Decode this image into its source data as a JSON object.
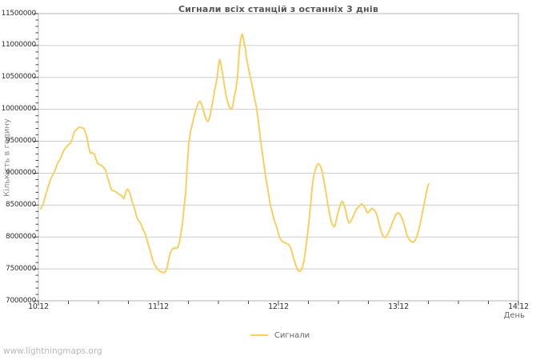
{
  "page": {
    "watermark": "www.lightningmaps.org"
  },
  "chart": {
    "title": "Сигнали всіх станцій з останніх 3 днів",
    "x_axis_label": "День",
    "y_axis_label": "Кількість в годину",
    "legend": [
      {
        "label": "Сигнали",
        "color": "#f9d05f"
      }
    ],
    "colors": {
      "line": "#f9d05f",
      "grid": "#cccccc",
      "border": "#b4b4b4",
      "tick": "#444444"
    }
  },
  "chart_data": {
    "type": "line",
    "title": "Сигнали всіх станцій з останніх 3 днів",
    "xlabel": "День",
    "ylabel": "Кількість в годину",
    "legend_position": "bottom-center",
    "grid": "horizontal",
    "x_tick_labels": [
      "10.12",
      "11.12",
      "12.12",
      "13.12",
      "14.12"
    ],
    "x_tick_positions_days": [
      0,
      1,
      2,
      3,
      4
    ],
    "x_minor_tick_interval_days": 0.25,
    "y_tick_values": [
      7000000,
      7500000,
      8000000,
      8500000,
      9000000,
      9500000,
      10000000,
      10500000,
      11000000,
      11500000
    ],
    "y_minor_tick_interval": 100000,
    "xlim_days": [
      0,
      4
    ],
    "ylim": [
      7000000,
      11500000
    ],
    "series": [
      {
        "name": "Сигнали",
        "color": "#f9d05f",
        "x_unit": "days_after_10.12",
        "points": [
          [
            0.02,
            8440000
          ],
          [
            0.04,
            8520000
          ],
          [
            0.06,
            8650000
          ],
          [
            0.08,
            8780000
          ],
          [
            0.1,
            8900000
          ],
          [
            0.12,
            8970000
          ],
          [
            0.14,
            9050000
          ],
          [
            0.16,
            9160000
          ],
          [
            0.18,
            9210000
          ],
          [
            0.2,
            9310000
          ],
          [
            0.22,
            9380000
          ],
          [
            0.247,
            9440000
          ],
          [
            0.267,
            9470000
          ],
          [
            0.28,
            9530000
          ],
          [
            0.3,
            9650000
          ],
          [
            0.32,
            9690000
          ],
          [
            0.34,
            9720000
          ],
          [
            0.367,
            9710000
          ],
          [
            0.38,
            9700000
          ],
          [
            0.393,
            9630000
          ],
          [
            0.407,
            9550000
          ],
          [
            0.413,
            9470000
          ],
          [
            0.42,
            9400000
          ],
          [
            0.433,
            9310000
          ],
          [
            0.447,
            9320000
          ],
          [
            0.467,
            9300000
          ],
          [
            0.48,
            9220000
          ],
          [
            0.493,
            9150000
          ],
          [
            0.507,
            9140000
          ],
          [
            0.527,
            9120000
          ],
          [
            0.547,
            9080000
          ],
          [
            0.56,
            9050000
          ],
          [
            0.573,
            8950000
          ],
          [
            0.587,
            8870000
          ],
          [
            0.6,
            8790000
          ],
          [
            0.613,
            8730000
          ],
          [
            0.633,
            8720000
          ],
          [
            0.653,
            8700000
          ],
          [
            0.673,
            8670000
          ],
          [
            0.693,
            8650000
          ],
          [
            0.713,
            8600000
          ],
          [
            0.727,
            8700000
          ],
          [
            0.74,
            8750000
          ],
          [
            0.753,
            8730000
          ],
          [
            0.767,
            8660000
          ],
          [
            0.78,
            8560000
          ],
          [
            0.793,
            8500000
          ],
          [
            0.807,
            8400000
          ],
          [
            0.82,
            8310000
          ],
          [
            0.833,
            8260000
          ],
          [
            0.847,
            8230000
          ],
          [
            0.86,
            8180000
          ],
          [
            0.873,
            8110000
          ],
          [
            0.887,
            8060000
          ],
          [
            0.9,
            7990000
          ],
          [
            0.913,
            7900000
          ],
          [
            0.927,
            7820000
          ],
          [
            0.94,
            7720000
          ],
          [
            0.953,
            7640000
          ],
          [
            0.967,
            7570000
          ],
          [
            0.98,
            7530000
          ],
          [
            0.993,
            7500000
          ],
          [
            1.007,
            7470000
          ],
          [
            1.027,
            7450000
          ],
          [
            1.047,
            7440000
          ],
          [
            1.06,
            7460000
          ],
          [
            1.073,
            7520000
          ],
          [
            1.087,
            7650000
          ],
          [
            1.1,
            7760000
          ],
          [
            1.113,
            7800000
          ],
          [
            1.127,
            7830000
          ],
          [
            1.14,
            7820000
          ],
          [
            1.153,
            7830000
          ],
          [
            1.16,
            7830000
          ],
          [
            1.173,
            7900000
          ],
          [
            1.187,
            8050000
          ],
          [
            1.2,
            8200000
          ],
          [
            1.213,
            8450000
          ],
          [
            1.227,
            8700000
          ],
          [
            1.24,
            9100000
          ],
          [
            1.253,
            9460000
          ],
          [
            1.267,
            9640000
          ],
          [
            1.28,
            9750000
          ],
          [
            1.293,
            9850000
          ],
          [
            1.307,
            9950000
          ],
          [
            1.32,
            10040000
          ],
          [
            1.333,
            10100000
          ],
          [
            1.347,
            10130000
          ],
          [
            1.36,
            10080000
          ],
          [
            1.373,
            10000000
          ],
          [
            1.387,
            9900000
          ],
          [
            1.4,
            9830000
          ],
          [
            1.413,
            9810000
          ],
          [
            1.427,
            9870000
          ],
          [
            1.44,
            10000000
          ],
          [
            1.453,
            10120000
          ],
          [
            1.467,
            10290000
          ],
          [
            1.48,
            10400000
          ],
          [
            1.493,
            10550000
          ],
          [
            1.5,
            10670000
          ],
          [
            1.507,
            10750000
          ],
          [
            1.513,
            10780000
          ],
          [
            1.527,
            10650000
          ],
          [
            1.54,
            10500000
          ],
          [
            1.553,
            10350000
          ],
          [
            1.567,
            10190000
          ],
          [
            1.58,
            10100000
          ],
          [
            1.593,
            10030000
          ],
          [
            1.607,
            10000000
          ],
          [
            1.62,
            10050000
          ],
          [
            1.633,
            10200000
          ],
          [
            1.647,
            10330000
          ],
          [
            1.66,
            10520000
          ],
          [
            1.667,
            10730000
          ],
          [
            1.673,
            10900000
          ],
          [
            1.68,
            11020000
          ],
          [
            1.687,
            11100000
          ],
          [
            1.693,
            11160000
          ],
          [
            1.7,
            11180000
          ],
          [
            1.707,
            11120000
          ],
          [
            1.713,
            11050000
          ],
          [
            1.727,
            10930000
          ],
          [
            1.733,
            10810000
          ],
          [
            1.747,
            10680000
          ],
          [
            1.76,
            10560000
          ],
          [
            1.773,
            10440000
          ],
          [
            1.787,
            10320000
          ],
          [
            1.8,
            10180000
          ],
          [
            1.813,
            10080000
          ],
          [
            1.827,
            9900000
          ],
          [
            1.84,
            9700000
          ],
          [
            1.853,
            9500000
          ],
          [
            1.867,
            9300000
          ],
          [
            1.88,
            9120000
          ],
          [
            1.893,
            8950000
          ],
          [
            1.907,
            8800000
          ],
          [
            1.92,
            8650000
          ],
          [
            1.933,
            8500000
          ],
          [
            1.947,
            8400000
          ],
          [
            1.96,
            8300000
          ],
          [
            1.973,
            8220000
          ],
          [
            1.987,
            8150000
          ],
          [
            2.0,
            8050000
          ],
          [
            2.013,
            7980000
          ],
          [
            2.027,
            7940000
          ],
          [
            2.04,
            7920000
          ],
          [
            2.053,
            7910000
          ],
          [
            2.067,
            7900000
          ],
          [
            2.08,
            7890000
          ],
          [
            2.093,
            7870000
          ],
          [
            2.107,
            7800000
          ],
          [
            2.12,
            7710000
          ],
          [
            2.133,
            7630000
          ],
          [
            2.147,
            7550000
          ],
          [
            2.16,
            7490000
          ],
          [
            2.173,
            7460000
          ],
          [
            2.187,
            7470000
          ],
          [
            2.2,
            7520000
          ],
          [
            2.213,
            7620000
          ],
          [
            2.227,
            7800000
          ],
          [
            2.24,
            8000000
          ],
          [
            2.253,
            8220000
          ],
          [
            2.267,
            8500000
          ],
          [
            2.28,
            8750000
          ],
          [
            2.293,
            8950000
          ],
          [
            2.307,
            9050000
          ],
          [
            2.32,
            9120000
          ],
          [
            2.333,
            9150000
          ],
          [
            2.347,
            9120000
          ],
          [
            2.36,
            9060000
          ],
          [
            2.373,
            8940000
          ],
          [
            2.387,
            8800000
          ],
          [
            2.4,
            8650000
          ],
          [
            2.413,
            8500000
          ],
          [
            2.427,
            8350000
          ],
          [
            2.44,
            8240000
          ],
          [
            2.453,
            8180000
          ],
          [
            2.467,
            8160000
          ],
          [
            2.48,
            8240000
          ],
          [
            2.493,
            8350000
          ],
          [
            2.507,
            8450000
          ],
          [
            2.52,
            8530000
          ],
          [
            2.533,
            8560000
          ],
          [
            2.547,
            8500000
          ],
          [
            2.56,
            8420000
          ],
          [
            2.573,
            8300000
          ],
          [
            2.587,
            8220000
          ],
          [
            2.6,
            8240000
          ],
          [
            2.613,
            8280000
          ],
          [
            2.633,
            8370000
          ],
          [
            2.653,
            8440000
          ],
          [
            2.673,
            8480000
          ],
          [
            2.693,
            8520000
          ],
          [
            2.713,
            8490000
          ],
          [
            2.727,
            8440000
          ],
          [
            2.74,
            8380000
          ],
          [
            2.753,
            8390000
          ],
          [
            2.767,
            8430000
          ],
          [
            2.78,
            8450000
          ],
          [
            2.793,
            8430000
          ],
          [
            2.807,
            8400000
          ],
          [
            2.82,
            8350000
          ],
          [
            2.833,
            8250000
          ],
          [
            2.847,
            8150000
          ],
          [
            2.86,
            8070000
          ],
          [
            2.873,
            8010000
          ],
          [
            2.887,
            7990000
          ],
          [
            2.9,
            8010000
          ],
          [
            2.913,
            8050000
          ],
          [
            2.927,
            8110000
          ],
          [
            2.94,
            8170000
          ],
          [
            2.953,
            8240000
          ],
          [
            2.967,
            8300000
          ],
          [
            2.98,
            8350000
          ],
          [
            2.993,
            8380000
          ],
          [
            3.007,
            8370000
          ],
          [
            3.02,
            8330000
          ],
          [
            3.033,
            8280000
          ],
          [
            3.047,
            8200000
          ],
          [
            3.06,
            8110000
          ],
          [
            3.073,
            8020000
          ],
          [
            3.087,
            7970000
          ],
          [
            3.1,
            7940000
          ],
          [
            3.113,
            7920000
          ],
          [
            3.127,
            7920000
          ],
          [
            3.14,
            7950000
          ],
          [
            3.153,
            8000000
          ],
          [
            3.167,
            8090000
          ],
          [
            3.18,
            8200000
          ],
          [
            3.193,
            8310000
          ],
          [
            3.207,
            8450000
          ],
          [
            3.22,
            8570000
          ],
          [
            3.233,
            8700000
          ],
          [
            3.247,
            8810000
          ],
          [
            3.253,
            8830000
          ]
        ]
      }
    ]
  }
}
